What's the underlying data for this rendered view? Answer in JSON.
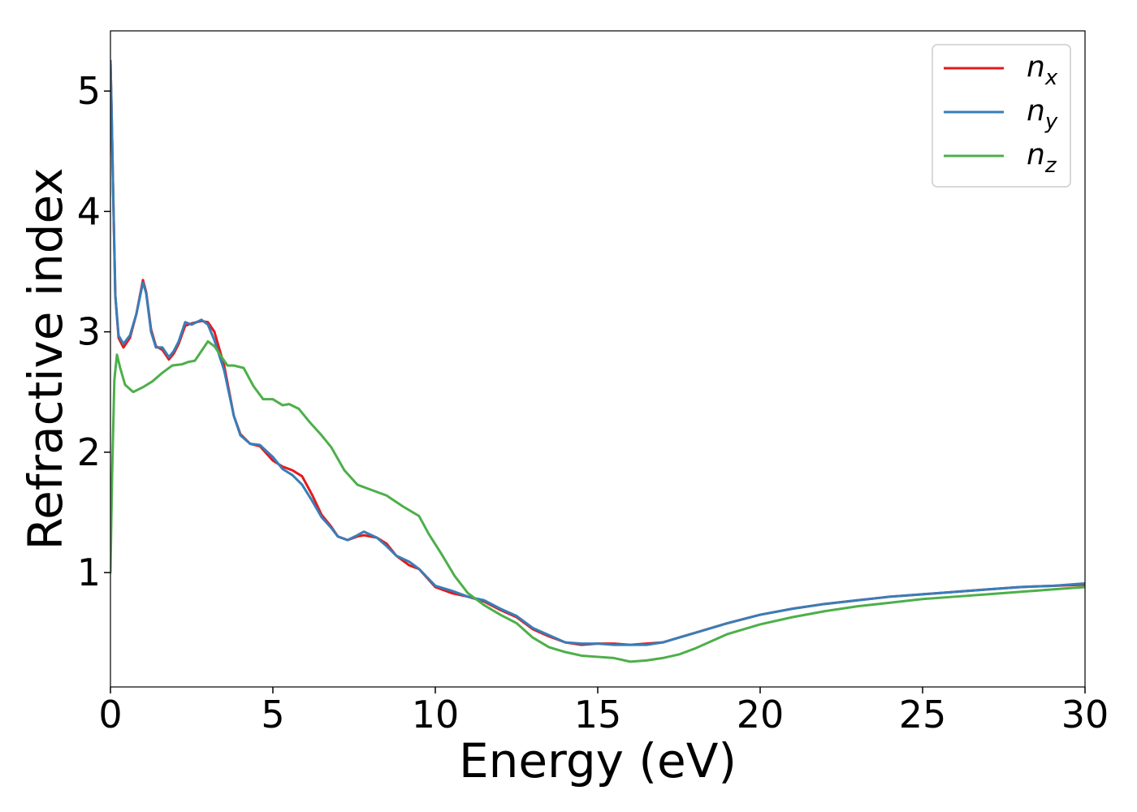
{
  "chart_data": {
    "type": "line",
    "title": "",
    "xlabel": "Energy (eV)",
    "ylabel": "Refractive index",
    "xlim": [
      0,
      30
    ],
    "ylim": [
      0.05,
      5.5
    ],
    "xticks": [
      0,
      5,
      10,
      15,
      20,
      25,
      30
    ],
    "yticks": [
      1,
      2,
      3,
      4,
      5
    ],
    "grid": false,
    "legend_position": "top-right",
    "series": [
      {
        "name": "n_x",
        "label_base": "n",
        "label_sub": "x",
        "color": "#e41a1c",
        "x": [
          0.0,
          0.03,
          0.08,
          0.15,
          0.25,
          0.4,
          0.6,
          0.8,
          1.0,
          1.1,
          1.25,
          1.4,
          1.6,
          1.8,
          1.95,
          2.1,
          2.3,
          2.5,
          2.8,
          3.0,
          3.2,
          3.5,
          3.8,
          4.0,
          4.3,
          4.6,
          5.0,
          5.3,
          5.6,
          5.9,
          6.2,
          6.5,
          6.8,
          7.0,
          7.3,
          7.6,
          7.8,
          8.2,
          8.5,
          8.8,
          9.2,
          9.5,
          10.0,
          10.5,
          11.0,
          11.5,
          12.0,
          12.5,
          13.0,
          13.5,
          14.0,
          14.5,
          15.0,
          15.5,
          16.0,
          16.5,
          17.0,
          17.5,
          18.0,
          19.0,
          20.0,
          21.0,
          22.0,
          23.0,
          24.0,
          25.0,
          26.0,
          27.0,
          28.0,
          29.0,
          30.0
        ],
        "y": [
          5.25,
          4.9,
          4.2,
          3.3,
          2.95,
          2.87,
          2.95,
          3.15,
          3.43,
          3.33,
          3.02,
          2.88,
          2.85,
          2.77,
          2.82,
          2.9,
          3.05,
          3.07,
          3.09,
          3.08,
          3.0,
          2.72,
          2.3,
          2.15,
          2.07,
          2.05,
          1.93,
          1.88,
          1.85,
          1.8,
          1.65,
          1.48,
          1.38,
          1.3,
          1.27,
          1.3,
          1.31,
          1.29,
          1.24,
          1.14,
          1.06,
          1.03,
          0.88,
          0.83,
          0.8,
          0.76,
          0.69,
          0.63,
          0.53,
          0.47,
          0.42,
          0.4,
          0.41,
          0.41,
          0.4,
          0.41,
          0.42,
          0.46,
          0.5,
          0.58,
          0.65,
          0.7,
          0.74,
          0.77,
          0.8,
          0.82,
          0.84,
          0.86,
          0.88,
          0.89,
          0.9
        ]
      },
      {
        "name": "n_y",
        "label_base": "n",
        "label_sub": "y",
        "color": "#377eb8",
        "x": [
          0.0,
          0.03,
          0.08,
          0.15,
          0.25,
          0.4,
          0.6,
          0.8,
          1.0,
          1.1,
          1.25,
          1.4,
          1.6,
          1.8,
          1.95,
          2.1,
          2.3,
          2.5,
          2.8,
          3.0,
          3.2,
          3.5,
          3.8,
          4.0,
          4.3,
          4.6,
          5.0,
          5.3,
          5.6,
          5.9,
          6.2,
          6.5,
          6.8,
          7.0,
          7.3,
          7.6,
          7.8,
          8.2,
          8.5,
          8.8,
          9.2,
          9.5,
          10.0,
          10.5,
          11.0,
          11.5,
          12.0,
          12.5,
          13.0,
          13.5,
          14.0,
          14.5,
          15.0,
          15.5,
          16.0,
          16.5,
          17.0,
          17.5,
          18.0,
          19.0,
          20.0,
          21.0,
          22.0,
          23.0,
          24.0,
          25.0,
          26.0,
          27.0,
          28.0,
          29.0,
          30.0
        ],
        "y": [
          5.25,
          4.9,
          4.2,
          3.3,
          2.97,
          2.9,
          2.97,
          3.15,
          3.41,
          3.32,
          3.0,
          2.87,
          2.87,
          2.79,
          2.84,
          2.92,
          3.08,
          3.06,
          3.1,
          3.06,
          2.93,
          2.68,
          2.3,
          2.14,
          2.07,
          2.06,
          1.96,
          1.86,
          1.81,
          1.73,
          1.6,
          1.46,
          1.37,
          1.3,
          1.27,
          1.31,
          1.34,
          1.29,
          1.22,
          1.14,
          1.09,
          1.03,
          0.89,
          0.85,
          0.8,
          0.77,
          0.7,
          0.64,
          0.54,
          0.48,
          0.42,
          0.41,
          0.41,
          0.4,
          0.4,
          0.4,
          0.42,
          0.46,
          0.5,
          0.58,
          0.65,
          0.7,
          0.74,
          0.77,
          0.8,
          0.82,
          0.84,
          0.86,
          0.88,
          0.89,
          0.91
        ]
      },
      {
        "name": "n_z",
        "label_base": "n",
        "label_sub": "z",
        "color": "#4daf4a",
        "x": [
          0.0,
          0.05,
          0.12,
          0.2,
          0.3,
          0.45,
          0.7,
          1.0,
          1.3,
          1.6,
          1.9,
          2.2,
          2.4,
          2.6,
          2.8,
          3.0,
          3.2,
          3.4,
          3.6,
          3.8,
          4.1,
          4.4,
          4.7,
          5.0,
          5.3,
          5.5,
          5.8,
          6.1,
          6.5,
          6.8,
          7.2,
          7.6,
          8.0,
          8.5,
          9.0,
          9.5,
          9.8,
          10.2,
          10.6,
          11.0,
          11.5,
          12.0,
          12.5,
          13.0,
          13.5,
          14.0,
          14.5,
          15.0,
          15.5,
          16.0,
          16.5,
          17.0,
          17.5,
          18.0,
          18.5,
          19.0,
          20.0,
          21.0,
          22.0,
          23.0,
          24.0,
          25.0,
          26.0,
          27.0,
          28.0,
          29.0,
          30.0
        ],
        "y": [
          1.0,
          1.8,
          2.6,
          2.81,
          2.7,
          2.56,
          2.5,
          2.54,
          2.59,
          2.66,
          2.72,
          2.73,
          2.75,
          2.76,
          2.84,
          2.92,
          2.88,
          2.8,
          2.72,
          2.72,
          2.7,
          2.55,
          2.44,
          2.44,
          2.39,
          2.4,
          2.36,
          2.26,
          2.14,
          2.04,
          1.85,
          1.73,
          1.69,
          1.64,
          1.55,
          1.47,
          1.32,
          1.15,
          0.97,
          0.83,
          0.73,
          0.65,
          0.58,
          0.46,
          0.38,
          0.34,
          0.31,
          0.3,
          0.29,
          0.26,
          0.27,
          0.29,
          0.32,
          0.37,
          0.43,
          0.49,
          0.57,
          0.63,
          0.68,
          0.72,
          0.75,
          0.78,
          0.8,
          0.82,
          0.84,
          0.86,
          0.88
        ]
      }
    ]
  }
}
